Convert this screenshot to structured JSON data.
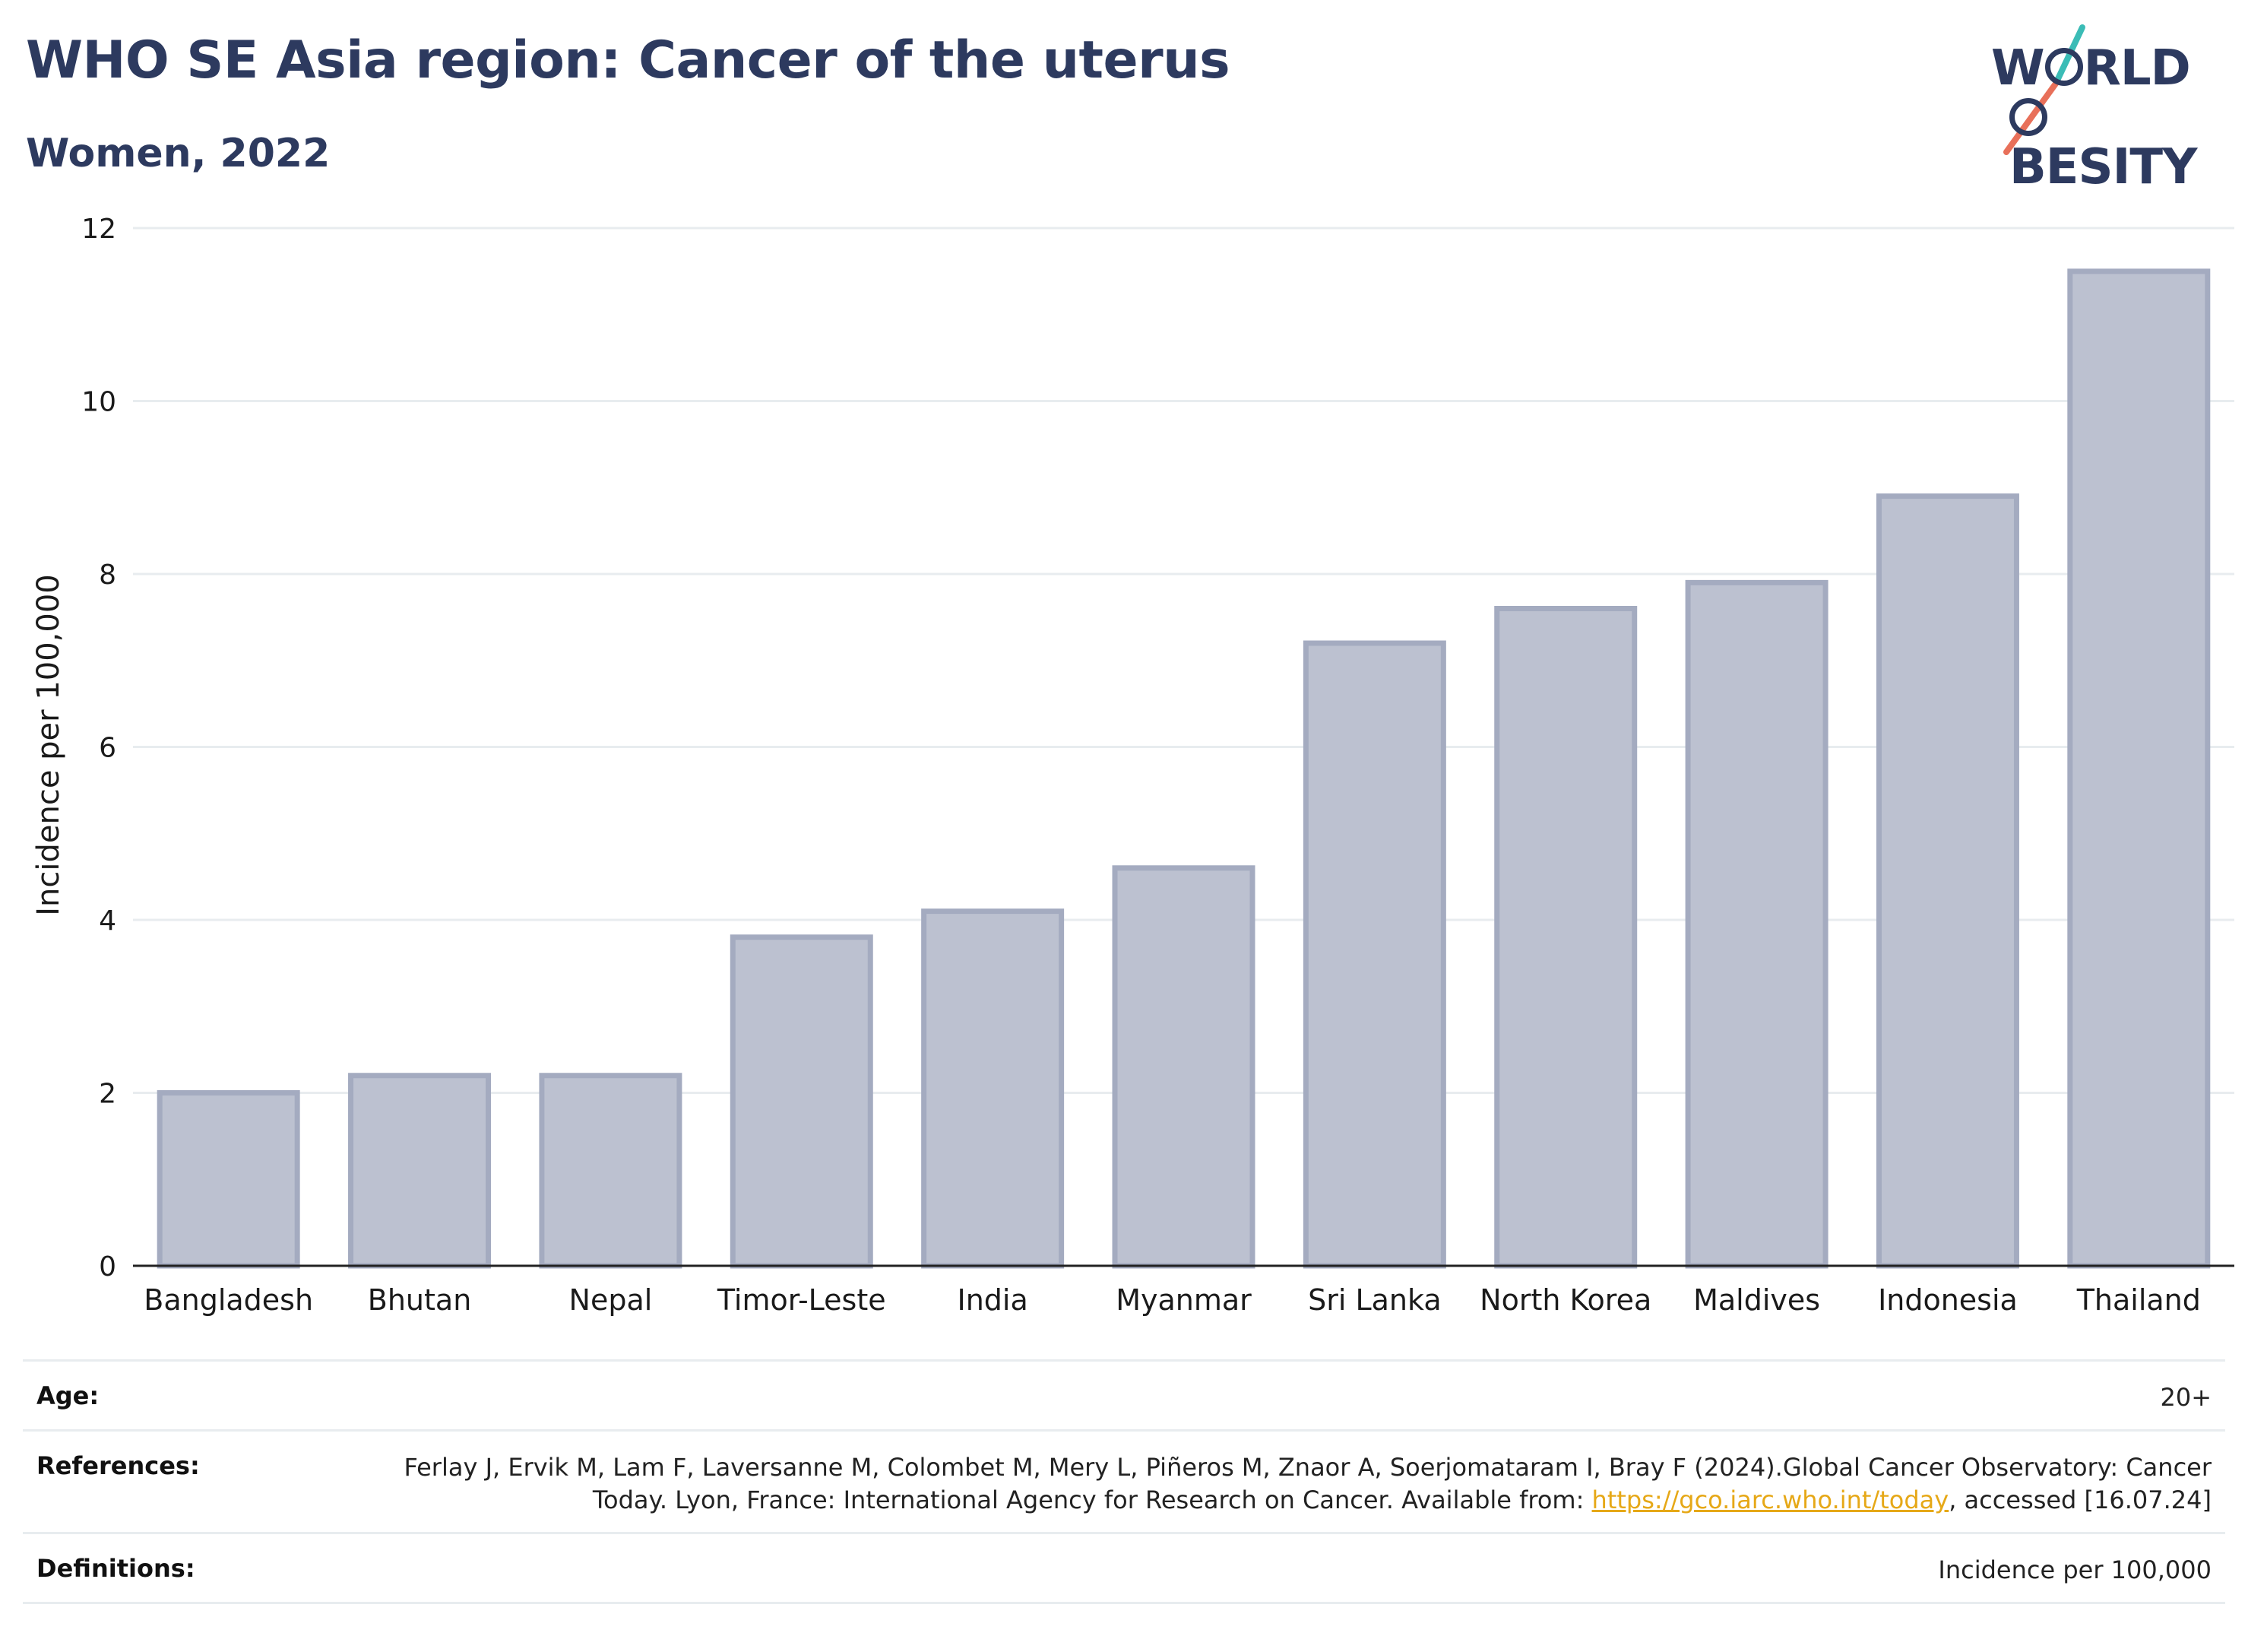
{
  "header": {
    "title": "WHO SE Asia region: Cancer of the uterus",
    "subtitle": "Women, 2022"
  },
  "logo": {
    "line1": "W",
    "line1b": "RLD",
    "line2b": "BESITY",
    "accent_teal": "#3bbcb6",
    "accent_coral": "#e8705a"
  },
  "colors": {
    "bar_fill": "#bcc1d0",
    "bar_stroke": "#a4abc0",
    "text_dark": "#2d3a5f",
    "grid": "#e8ecef",
    "link": "#e6a817"
  },
  "chart_data": {
    "type": "bar",
    "title": "WHO SE Asia region: Cancer of the uterus",
    "subtitle": "Women, 2022",
    "xlabel": "",
    "ylabel": "Incidence per 100,000",
    "ylim": [
      0,
      12
    ],
    "yticks": [
      0,
      2,
      4,
      6,
      8,
      10,
      12
    ],
    "grid": true,
    "categories": [
      "Bangladesh",
      "Bhutan",
      "Nepal",
      "Timor-Leste",
      "India",
      "Myanmar",
      "Sri Lanka",
      "North Korea",
      "Maldives",
      "Indonesia",
      "Thailand"
    ],
    "values": [
      2.0,
      2.2,
      2.2,
      3.8,
      4.1,
      4.6,
      7.2,
      7.6,
      7.9,
      8.9,
      11.5
    ]
  },
  "meta": {
    "age_label": "Age:",
    "age_value": "20+",
    "references_label": "References:",
    "references_text_before": "Ferlay J, Ervik M, Lam F, Laversanne M, Colombet M, Mery L, Piñeros M, Znaor A, Soerjomataram I, Bray F (2024).Global Cancer Observatory: Cancer Today. Lyon, France: International Agency for Research on Cancer. Available from: ",
    "references_link": "https://gco.iarc.who.int/today",
    "references_text_after": ", accessed [16.07.24]",
    "definitions_label": "Definitions:",
    "definitions_value": "Incidence per 100,000"
  }
}
